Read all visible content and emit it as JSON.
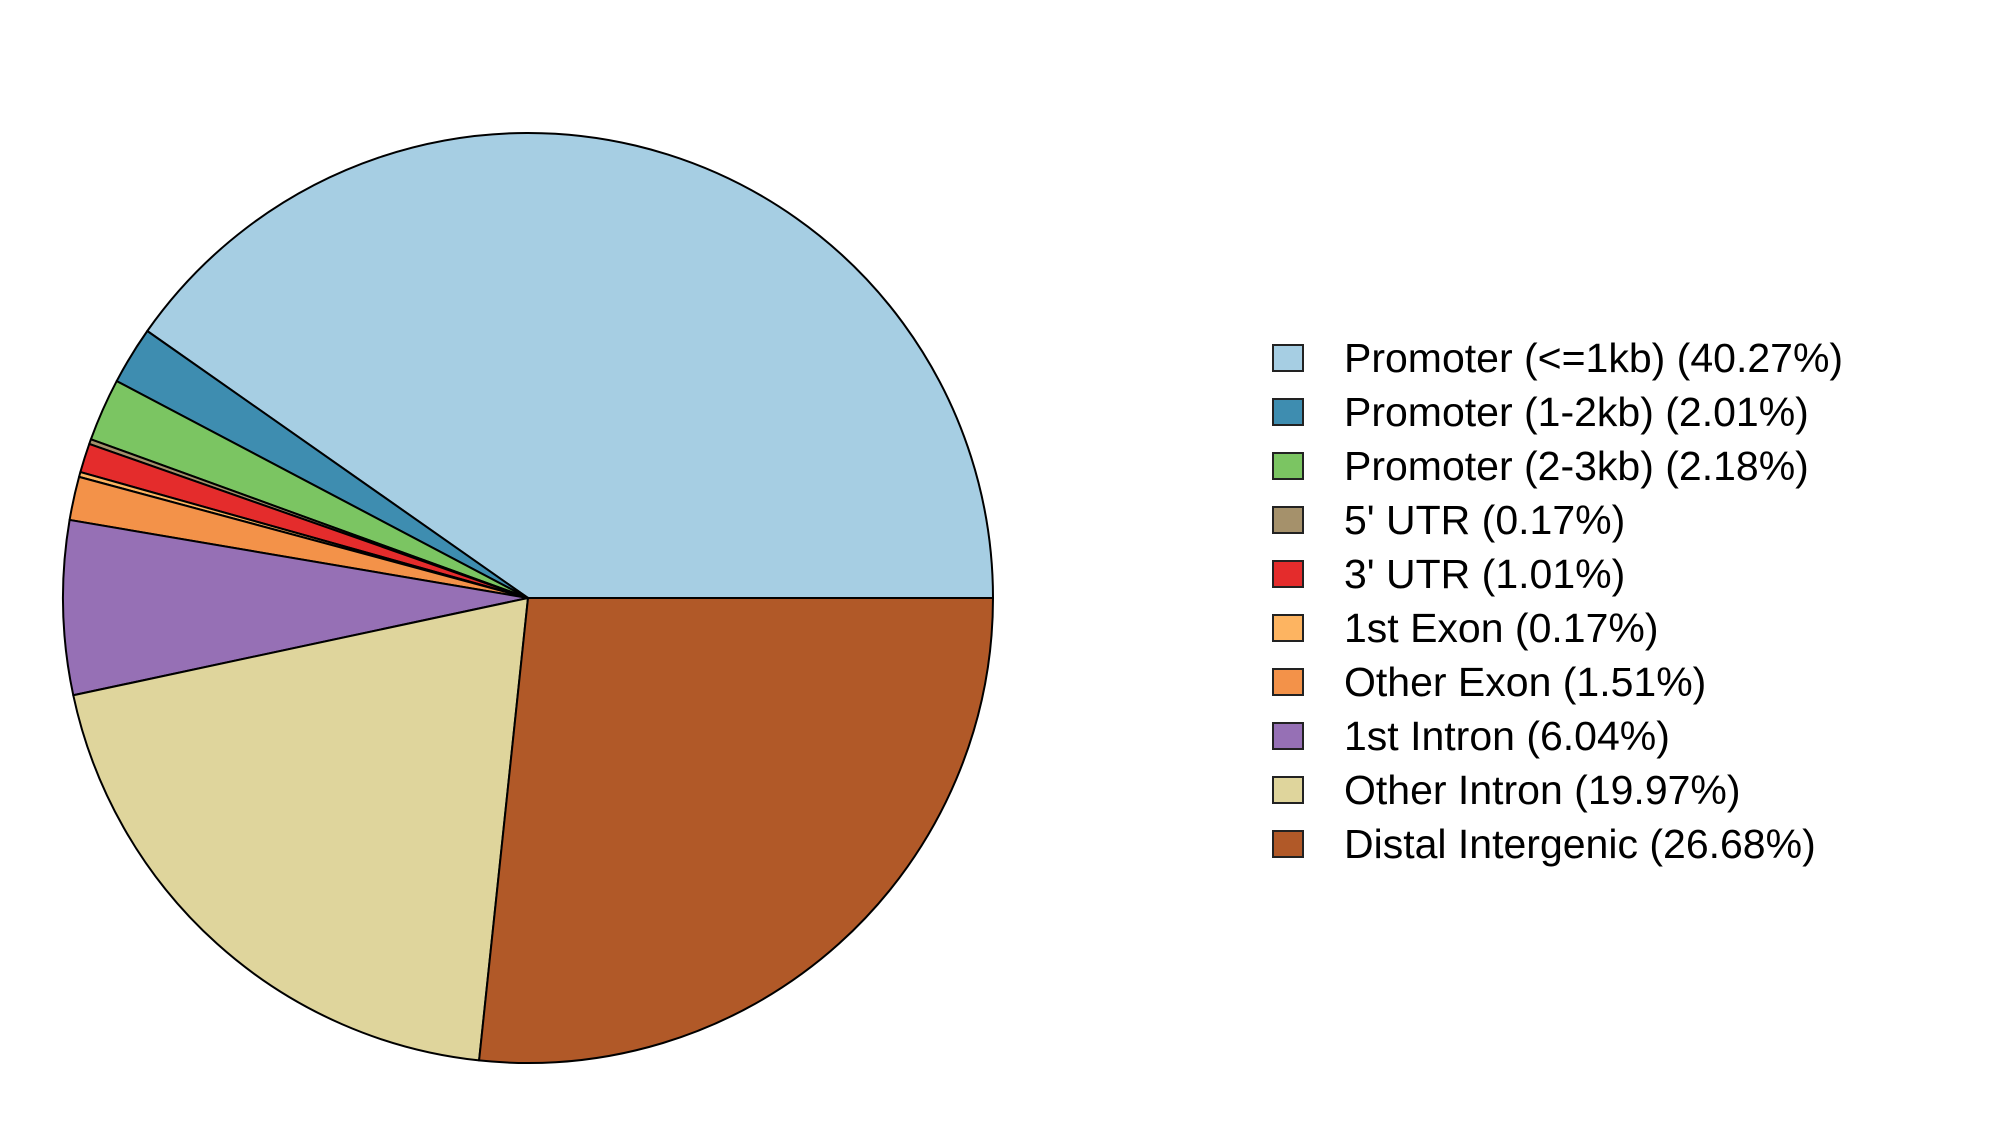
{
  "chart_data": {
    "type": "pie",
    "title": "",
    "legend_position": "right",
    "start": "right",
    "direction": "counterclockwise",
    "slices": [
      {
        "label": "Promoter (<=1kb) (40.27%)",
        "value": 40.27,
        "color": "#A6CEE3"
      },
      {
        "label": "Promoter (1-2kb) (2.01%)",
        "value": 2.01,
        "color": "#3E8DB0"
      },
      {
        "label": "Promoter (2-3kb) (2.18%)",
        "value": 2.18,
        "color": "#7BC562"
      },
      {
        "label": "5' UTR (0.17%)",
        "value": 0.17,
        "color": "#A5916B"
      },
      {
        "label": "3' UTR (1.01%)",
        "value": 1.01,
        "color": "#E42C2C"
      },
      {
        "label": "1st Exon (0.17%)",
        "value": 0.17,
        "color": "#FDB461"
      },
      {
        "label": "Other Exon (1.51%)",
        "value": 1.51,
        "color": "#F39249"
      },
      {
        "label": "1st Intron (6.04%)",
        "value": 6.04,
        "color": "#9670B5"
      },
      {
        "label": "Other Intron (19.97%)",
        "value": 19.97,
        "color": "#DFD59C"
      },
      {
        "label": "Distal Intergenic (26.68%)",
        "value": 26.68,
        "color": "#B15928"
      }
    ]
  }
}
